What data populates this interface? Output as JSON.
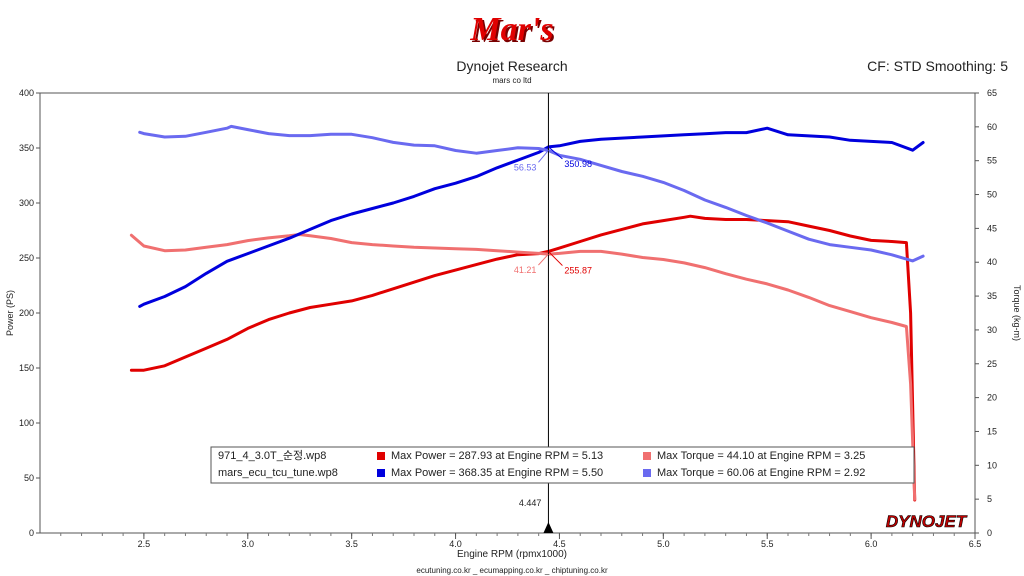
{
  "header": {
    "logo_text": "Mar's",
    "title": "Dynojet Research",
    "subtitle": "mars co ltd",
    "cf_text": "CF: STD Smoothing: 5"
  },
  "footer": {
    "websites": "ecutuning.co.kr _ ecumapping.co.kr _ chiptuning.co.kr",
    "brand_logo": "DYNOJET"
  },
  "cursor": {
    "x_label": "4.447",
    "blue_torque_label": "56.53",
    "blue_power_label": "350.98",
    "red_torque_label": "41.21",
    "red_power_label": "255.87"
  },
  "legend": {
    "rows": [
      {
        "file": "971_4_3.0T_순정.wp8",
        "power_text": "Max Power = 287.93 at Engine RPM = 5.13",
        "torque_text": "Max Torque = 44.10 at Engine RPM = 3.25",
        "power_color": "#e00000",
        "torque_color": "#f07070"
      },
      {
        "file": "mars_ecu_tcu_tune.wp8",
        "power_text": "Max Power = 368.35 at Engine RPM = 5.50",
        "torque_text": "Max Torque = 60.06 at Engine RPM = 2.92",
        "power_color": "#0000dd",
        "torque_color": "#6a6af0"
      }
    ]
  },
  "chart_data": {
    "type": "line",
    "title": "Dynojet Research",
    "xlabel": "Engine RPM (rpmx1000)",
    "ylabel": "Power (PS)",
    "y2label": "Torque (kg-m)",
    "xlim": [
      2.0,
      6.5
    ],
    "ylim": [
      0,
      400
    ],
    "y2lim": [
      0,
      65
    ],
    "x_ticks": [
      "2.5",
      "3.0",
      "3.5",
      "4.0",
      "4.5",
      "5.0",
      "5.5",
      "6.0",
      "6.5"
    ],
    "y_ticks": [
      "0",
      "50",
      "100",
      "150",
      "200",
      "250",
      "300",
      "350",
      "400"
    ],
    "y2_ticks": [
      "0",
      "5",
      "10",
      "15",
      "20",
      "25",
      "30",
      "35",
      "40",
      "45",
      "50",
      "55",
      "60",
      "65"
    ],
    "grid": false,
    "series": [
      {
        "file": "971_4_3.0T_순정.wp8",
        "axis": "power",
        "color": "#e00000",
        "x": [
          2.44,
          2.5,
          2.6,
          2.7,
          2.8,
          2.9,
          3.0,
          3.1,
          3.2,
          3.3,
          3.4,
          3.5,
          3.6,
          3.7,
          3.8,
          3.9,
          4.0,
          4.1,
          4.2,
          4.3,
          4.4,
          4.447,
          4.5,
          4.6,
          4.7,
          4.8,
          4.9,
          5.0,
          5.1,
          5.13,
          5.2,
          5.3,
          5.4,
          5.5,
          5.6,
          5.7,
          5.8,
          5.9,
          6.0,
          6.1,
          6.17,
          6.19,
          6.21
        ],
        "values": [
          148,
          148,
          152,
          160,
          168,
          176,
          186,
          194,
          200,
          205,
          208,
          211,
          216,
          222,
          228,
          234,
          239,
          244,
          249,
          253,
          254,
          256,
          259,
          265,
          271,
          276,
          281,
          284,
          287,
          288,
          286,
          285,
          285,
          284,
          283,
          279,
          275,
          270,
          266,
          265,
          264,
          200,
          30
        ]
      },
      {
        "file": "971_4_3.0T_순정.wp8",
        "axis": "torque",
        "color": "#f07070",
        "x": [
          2.44,
          2.5,
          2.6,
          2.7,
          2.8,
          2.9,
          3.0,
          3.1,
          3.2,
          3.25,
          3.3,
          3.4,
          3.5,
          3.6,
          3.7,
          3.8,
          3.9,
          4.0,
          4.1,
          4.2,
          4.3,
          4.4,
          4.447,
          4.5,
          4.6,
          4.7,
          4.8,
          4.9,
          5.0,
          5.1,
          5.2,
          5.3,
          5.4,
          5.5,
          5.6,
          5.7,
          5.8,
          5.9,
          6.0,
          6.1,
          6.17,
          6.19,
          6.21
        ],
        "values": [
          44.0,
          42.4,
          41.7,
          41.8,
          42.2,
          42.6,
          43.2,
          43.6,
          43.9,
          44.1,
          43.9,
          43.5,
          42.9,
          42.6,
          42.4,
          42.2,
          42.1,
          42.0,
          41.9,
          41.7,
          41.5,
          41.3,
          41.2,
          41.3,
          41.6,
          41.6,
          41.2,
          40.7,
          40.4,
          39.9,
          39.2,
          38.3,
          37.5,
          36.8,
          35.9,
          34.8,
          33.6,
          32.7,
          31.8,
          31.1,
          30.5,
          22.0,
          5.0
        ]
      },
      {
        "file": "mars_ecu_tcu_tune.wp8",
        "axis": "power",
        "color": "#0000dd",
        "x": [
          2.48,
          2.5,
          2.6,
          2.7,
          2.8,
          2.9,
          3.0,
          3.1,
          3.2,
          3.3,
          3.4,
          3.5,
          3.6,
          3.7,
          3.8,
          3.9,
          4.0,
          4.1,
          4.2,
          4.3,
          4.4,
          4.447,
          4.5,
          4.6,
          4.7,
          4.8,
          4.9,
          5.0,
          5.1,
          5.2,
          5.3,
          5.4,
          5.5,
          5.6,
          5.7,
          5.8,
          5.9,
          6.0,
          6.1,
          6.2,
          6.25
        ],
        "values": [
          206,
          208,
          215,
          224,
          236,
          247,
          254,
          261,
          268,
          276,
          284,
          290,
          295,
          300,
          306,
          313,
          318,
          324,
          332,
          339,
          346,
          351,
          352,
          356,
          358,
          359,
          360,
          361,
          362,
          363,
          364,
          364,
          368,
          362,
          361,
          360,
          357,
          356,
          355,
          348,
          355
        ]
      },
      {
        "file": "mars_ecu_tcu_tune.wp8",
        "axis": "torque",
        "color": "#6a6af0",
        "x": [
          2.48,
          2.5,
          2.6,
          2.7,
          2.8,
          2.9,
          2.92,
          3.0,
          3.1,
          3.2,
          3.3,
          3.4,
          3.5,
          3.6,
          3.7,
          3.8,
          3.9,
          4.0,
          4.1,
          4.2,
          4.3,
          4.4,
          4.447,
          4.5,
          4.6,
          4.7,
          4.8,
          4.9,
          5.0,
          5.1,
          5.2,
          5.3,
          5.4,
          5.5,
          5.6,
          5.7,
          5.8,
          5.9,
          6.0,
          6.1,
          6.2,
          6.25
        ],
        "values": [
          59.2,
          59.0,
          58.5,
          58.6,
          59.2,
          59.8,
          60.06,
          59.6,
          59.0,
          58.7,
          58.7,
          58.9,
          58.9,
          58.4,
          57.7,
          57.3,
          57.2,
          56.5,
          56.1,
          56.5,
          56.9,
          56.8,
          56.5,
          55.8,
          55.2,
          54.3,
          53.4,
          52.7,
          51.8,
          50.6,
          49.2,
          48.1,
          46.9,
          45.8,
          44.6,
          43.4,
          42.6,
          42.2,
          41.8,
          41.1,
          40.2,
          40.9
        ]
      }
    ]
  }
}
